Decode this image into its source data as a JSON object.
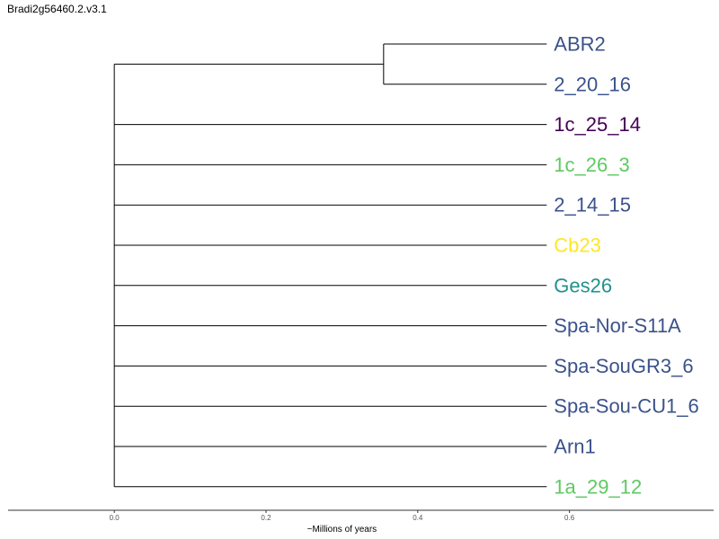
{
  "title": "Bradi2g56460.2.v3.1",
  "chart_data": {
    "type": "dendrogram",
    "xlabel": "~Millions of years",
    "xlim": [
      -0.14,
      0.79
    ],
    "x_ticks": [
      0.0,
      0.2,
      0.4,
      0.6
    ],
    "x_tick_labels": [
      "0.0",
      "0.2",
      "0.4",
      "0.6"
    ],
    "root_x": 0.0,
    "leaf_x": 0.57,
    "leaves": [
      {
        "label": "ABR2",
        "color": "#3b528b"
      },
      {
        "label": "2_20_16",
        "color": "#3b528b"
      },
      {
        "label": "1c_25_14",
        "color": "#440154"
      },
      {
        "label": "1c_26_3",
        "color": "#5ec962"
      },
      {
        "label": "2_14_15",
        "color": "#3b528b"
      },
      {
        "label": "Cb23",
        "color": "#fde725"
      },
      {
        "label": "Ges26",
        "color": "#21918c"
      },
      {
        "label": "Spa-Nor-S11A",
        "color": "#3b528b"
      },
      {
        "label": "Spa-SouGR3_6",
        "color": "#3b528b"
      },
      {
        "label": "Spa-Sou-CU1_6",
        "color": "#3b528b"
      },
      {
        "label": "Arn1",
        "color": "#3b528b"
      },
      {
        "label": "1a_29_12",
        "color": "#5ec962"
      }
    ],
    "clades": [
      {
        "node_x": 0.355,
        "members": [
          0,
          1
        ]
      }
    ],
    "line_color": "#000000",
    "grid": false
  }
}
